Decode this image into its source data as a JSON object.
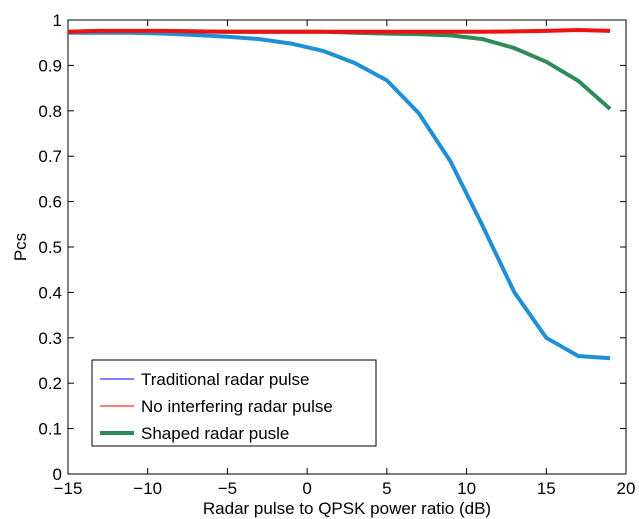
{
  "chart_data": {
    "type": "line",
    "title": "",
    "xlabel": "Radar pulse to QPSK power ratio (dB)",
    "ylabel": "Pcs",
    "xlim": [
      -15,
      20
    ],
    "ylim": [
      0,
      1
    ],
    "xticks": [
      -15,
      -10,
      -5,
      0,
      5,
      10,
      15,
      20
    ],
    "xtick_labels": [
      "−15",
      "−10",
      "−5",
      "0",
      "5",
      "10",
      "15",
      "20"
    ],
    "yticks": [
      0,
      0.1,
      0.2,
      0.3,
      0.4,
      0.5,
      0.6,
      0.7,
      0.8,
      0.9,
      1
    ],
    "ytick_labels": [
      "0",
      "0.1",
      "0.2",
      "0.3",
      "0.4",
      "0.5",
      "0.6",
      "0.7",
      "0.8",
      "0.9",
      "1"
    ],
    "grid": false,
    "legend_position": "bottom-left",
    "x": [
      -15,
      -13,
      -11,
      -9,
      -7,
      -5,
      -3,
      -1,
      1,
      3,
      5,
      7,
      9,
      11,
      13,
      15,
      17,
      19
    ],
    "series": [
      {
        "name": "Traditional radar pulse",
        "legend_color": "#0000ff",
        "color": "#1f8fd6",
        "width": 4,
        "legend_width": 1,
        "values": [
          0.972,
          0.972,
          0.972,
          0.97,
          0.967,
          0.963,
          0.958,
          0.948,
          0.932,
          0.905,
          0.867,
          0.795,
          0.688,
          0.547,
          0.4,
          0.3,
          0.26,
          0.255
        ]
      },
      {
        "name": "No interfering radar pulse",
        "legend_color": "#ff0000",
        "color": "#ee1111",
        "width": 4,
        "legend_width": 1,
        "values": [
          0.974,
          0.976,
          0.976,
          0.976,
          0.975,
          0.974,
          0.974,
          0.974,
          0.974,
          0.974,
          0.974,
          0.974,
          0.974,
          0.974,
          0.975,
          0.976,
          0.978,
          0.976
        ]
      },
      {
        "name": "Shaped radar pusle",
        "legend_color": "#2e8b57",
        "color": "#2e8b57",
        "width": 4,
        "legend_width": 4,
        "values": [
          0.974,
          0.976,
          0.976,
          0.976,
          0.975,
          0.974,
          0.974,
          0.974,
          0.974,
          0.972,
          0.97,
          0.969,
          0.966,
          0.958,
          0.938,
          0.908,
          0.866,
          0.804
        ]
      }
    ]
  }
}
